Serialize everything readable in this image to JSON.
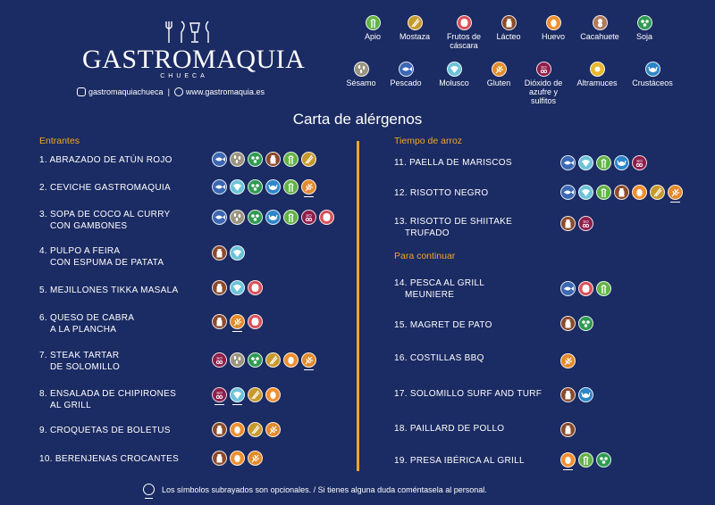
{
  "brand": {
    "name": "GASTROMAQUIA",
    "sub": "CHUECA",
    "instagram": "gastromaquiachueca",
    "separator": "|",
    "web": "www.gastromaquia.es"
  },
  "title": "Carta de alérgenos",
  "colors": {
    "background": "#1b2b63",
    "accent": "#f5a623"
  },
  "allergens": {
    "apio": {
      "label": "Apio",
      "color": "#62b346",
      "icon": "celery-icon"
    },
    "mostaza": {
      "label": "Mostaza",
      "color": "#c79a2e",
      "icon": "mustard-icon"
    },
    "frutos": {
      "label": "Frutos de cáscara",
      "color": "#d9515a",
      "icon": "nuts-icon"
    },
    "lacteo": {
      "label": "Lácteo",
      "color": "#8a4a2b",
      "icon": "milk-icon"
    },
    "huevo": {
      "label": "Huevo",
      "color": "#ef8e2e",
      "icon": "egg-icon"
    },
    "cacahuete": {
      "label": "Cacahuete",
      "color": "#b07b5c",
      "icon": "peanut-icon"
    },
    "soja": {
      "label": "Soja",
      "color": "#2f9a52",
      "icon": "soy-icon"
    },
    "sesamo": {
      "label": "Sésamo",
      "color": "#9a9480",
      "icon": "sesame-icon"
    },
    "pescado": {
      "label": "Pescado",
      "color": "#3b67b3",
      "icon": "fish-icon"
    },
    "molusco": {
      "label": "Molusco",
      "color": "#6cc3d9",
      "icon": "mollusc-icon"
    },
    "gluten": {
      "label": "Gluten",
      "color": "#e38a2b",
      "icon": "gluten-icon"
    },
    "sulfitos": {
      "label": "Dióxido de azufre y sulfitos",
      "color": "#8e1e4a",
      "icon": "sulphite-icon",
      "badge": "SO₂"
    },
    "altramuces": {
      "label": "Altramuces",
      "color": "#e6b92e",
      "icon": "lupin-icon"
    },
    "crustaceos": {
      "label": "Crustáceos",
      "color": "#2c86c9",
      "icon": "crustacean-icon"
    }
  },
  "sections": {
    "entrantes": "Entrantes",
    "arroz": "Tiempo de arroz",
    "continuar": "Para continuar"
  },
  "left_dishes": [
    {
      "name": "1. ABRAZADO DE ATÚN ROJO",
      "allergens": [
        "pescado",
        "sesamo",
        "soja",
        "lacteo",
        "apio",
        "mostaza"
      ],
      "underlined": []
    },
    {
      "name": "2. CEVICHE GASTROMAQUIA",
      "allergens": [
        "pescado",
        "molusco",
        "soja",
        "crustaceos",
        "apio",
        "gluten"
      ],
      "underlined": [
        "gluten"
      ]
    },
    {
      "name": "3. SOPA DE COCO AL CURRY\nCON GAMBONES",
      "allergens": [
        "pescado",
        "sesamo",
        "soja",
        "crustaceos",
        "apio",
        "sulfitos",
        "frutos"
      ],
      "underlined": []
    },
    {
      "name": "4. PULPO A FEIRA\nCON ESPUMA DE PATATA",
      "allergens": [
        "lacteo",
        "molusco"
      ],
      "underlined": []
    },
    {
      "name": "5. MEJILLONES TIKKA MASALA",
      "allergens": [
        "lacteo",
        "molusco",
        "frutos"
      ],
      "underlined": []
    },
    {
      "name": "6. QUESO DE CABRA\nA LA PLANCHA",
      "allergens": [
        "lacteo",
        "gluten",
        "frutos"
      ],
      "underlined": [
        "gluten"
      ]
    },
    {
      "name": "7. STEAK TARTAR\nDE SOLOMILLO",
      "allergens": [
        "sulfitos",
        "sesamo",
        "soja",
        "mostaza",
        "huevo",
        "gluten"
      ],
      "underlined": [
        "gluten"
      ]
    },
    {
      "name": "8. ENSALADA DE CHIPIRONES\nAL GRILL",
      "allergens": [
        "sulfitos",
        "molusco",
        "mostaza",
        "huevo"
      ],
      "underlined": [
        "sulfitos",
        "molusco"
      ]
    },
    {
      "name": "9. CROQUETAS DE BOLETUS",
      "allergens": [
        "lacteo",
        "huevo",
        "mostaza",
        "gluten"
      ],
      "underlined": []
    },
    {
      "name": "10. BERENJENAS CROCANTES",
      "allergens": [
        "lacteo",
        "huevo",
        "gluten"
      ],
      "underlined": []
    }
  ],
  "rice_dishes": [
    {
      "name": "11. PAELLA DE MARISCOS",
      "allergens": [
        "pescado",
        "molusco",
        "apio",
        "crustaceos",
        "sulfitos"
      ],
      "underlined": []
    },
    {
      "name": "12. RISOTTO NEGRO",
      "allergens": [
        "pescado",
        "molusco",
        "apio",
        "lacteo",
        "huevo",
        "mostaza",
        "gluten"
      ],
      "underlined": [
        "gluten"
      ]
    },
    {
      "name": "13. RISOTTO DE SHIITAKE\nTRUFADO",
      "allergens": [
        "lacteo",
        "sulfitos"
      ],
      "underlined": []
    }
  ],
  "cont_dishes": [
    {
      "name": "14. PESCA AL GRILL\nMEUNIERE",
      "allergens": [
        "pescado",
        "frutos",
        "apio"
      ],
      "underlined": []
    },
    {
      "name": "15. MAGRET DE PATO",
      "allergens": [
        "lacteo",
        "soja"
      ],
      "underlined": []
    },
    {
      "name": "16. COSTILLAS BBQ",
      "allergens": [
        "gluten"
      ],
      "underlined": []
    },
    {
      "name": "17. SOLOMILLO SURF AND TURF",
      "allergens": [
        "lacteo",
        "crustaceos"
      ],
      "underlined": []
    },
    {
      "name": "18. PAILLARD DE POLLO",
      "allergens": [
        "lacteo"
      ],
      "underlined": []
    },
    {
      "name": "19. PRESA IBÉRICA AL GRILL",
      "allergens": [
        "huevo",
        "apio",
        "soja"
      ],
      "underlined": [
        "huevo"
      ]
    }
  ],
  "footer": "Los símbolos subrayados son opcionales. / Si tienes alguna duda coméntasela al personal."
}
